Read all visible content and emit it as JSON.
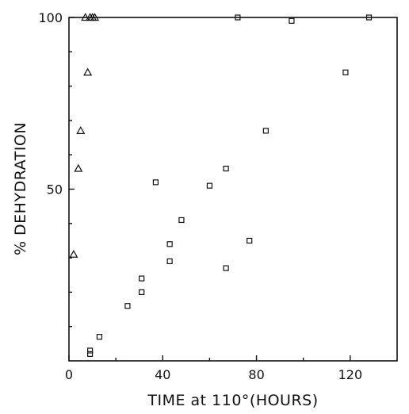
{
  "chart_data": {
    "type": "scatter",
    "title": "",
    "xlabel": "TIME at 110°(HOURS)",
    "ylabel": "% DEHYDRATION",
    "xlim": [
      0,
      140
    ],
    "ylim": [
      0,
      100
    ],
    "x_ticks": [
      0,
      40,
      80,
      120
    ],
    "x_tick_labels": [
      "0",
      "40",
      "80",
      "120"
    ],
    "y_ticks": [
      50,
      100
    ],
    "y_tick_labels": [
      "50",
      "100"
    ],
    "grid": false,
    "legend": "none",
    "series": [
      {
        "marker": "triangle",
        "points": [
          {
            "x": 2,
            "y": 31
          },
          {
            "x": 4,
            "y": 56
          },
          {
            "x": 5,
            "y": 67
          },
          {
            "x": 7,
            "y": 100
          },
          {
            "x": 8,
            "y": 84
          },
          {
            "x": 9,
            "y": 100
          },
          {
            "x": 10,
            "y": 100
          },
          {
            "x": 11,
            "y": 100
          }
        ]
      },
      {
        "marker": "square",
        "points": [
          {
            "x": 9,
            "y": 2
          },
          {
            "x": 9,
            "y": 3
          },
          {
            "x": 13,
            "y": 7
          },
          {
            "x": 25,
            "y": 16
          },
          {
            "x": 31,
            "y": 20
          },
          {
            "x": 31,
            "y": 24
          },
          {
            "x": 37,
            "y": 52
          },
          {
            "x": 43,
            "y": 29
          },
          {
            "x": 43,
            "y": 34
          },
          {
            "x": 48,
            "y": 41
          },
          {
            "x": 60,
            "y": 51
          },
          {
            "x": 67,
            "y": 27
          },
          {
            "x": 67,
            "y": 56
          },
          {
            "x": 72,
            "y": 100
          },
          {
            "x": 77,
            "y": 35
          },
          {
            "x": 84,
            "y": 67
          },
          {
            "x": 95,
            "y": 99
          },
          {
            "x": 118,
            "y": 84
          },
          {
            "x": 128,
            "y": 100
          }
        ]
      }
    ]
  }
}
